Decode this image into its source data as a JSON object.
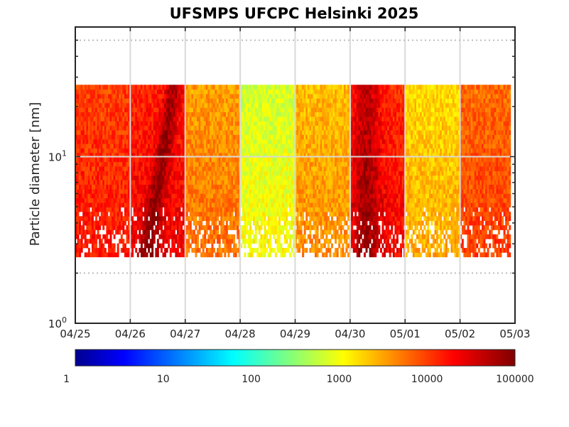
{
  "chart_data": {
    "type": "heatmap",
    "title": "UFSMPS UFCPC Helsinki 2025",
    "xlabel": "",
    "ylabel": "Particle diameter [nm]",
    "x_ticks": [
      "04/25",
      "04/26",
      "04/27",
      "04/28",
      "04/29",
      "04/30",
      "05/01",
      "05/02",
      "05/03"
    ],
    "x_range": [
      "2025-04-25",
      "2025-05-03"
    ],
    "y_scale": "log",
    "y_range_nm": [
      1,
      60
    ],
    "y_tick_labels": [
      {
        "base": "10",
        "exp": "0"
      },
      {
        "base": "10",
        "exp": "1"
      }
    ],
    "data_diameter_range_nm": [
      2.5,
      27
    ],
    "grid": true,
    "colorscale": "jet",
    "colorbar": {
      "scale": "log",
      "range": [
        1,
        100000
      ],
      "tick_labels": [
        "1",
        "10",
        "100",
        "1000",
        "10000",
        "100000"
      ]
    },
    "day_features": [
      {
        "date": "2025-04-25",
        "level": "high",
        "note": "mostly orange/red across diameters"
      },
      {
        "date": "2025-04-26",
        "level": "very high",
        "note": "red band rising from small to large sizes"
      },
      {
        "date": "2025-04-27",
        "level": "moderate",
        "note": "yellow-orange, decreasing"
      },
      {
        "date": "2025-04-28",
        "level": "low",
        "note": "green-yellow, gaps at small sizes"
      },
      {
        "date": "2025-04-29",
        "level": "moderate",
        "note": "yellow with red at small sizes"
      },
      {
        "date": "2025-04-30",
        "level": "very high",
        "note": "intense red band"
      },
      {
        "date": "2025-05-01",
        "level": "moderate",
        "note": "green-yellow-orange"
      },
      {
        "date": "2025-05-02",
        "level": "high",
        "note": "orange/red, red at small sizes"
      }
    ]
  }
}
